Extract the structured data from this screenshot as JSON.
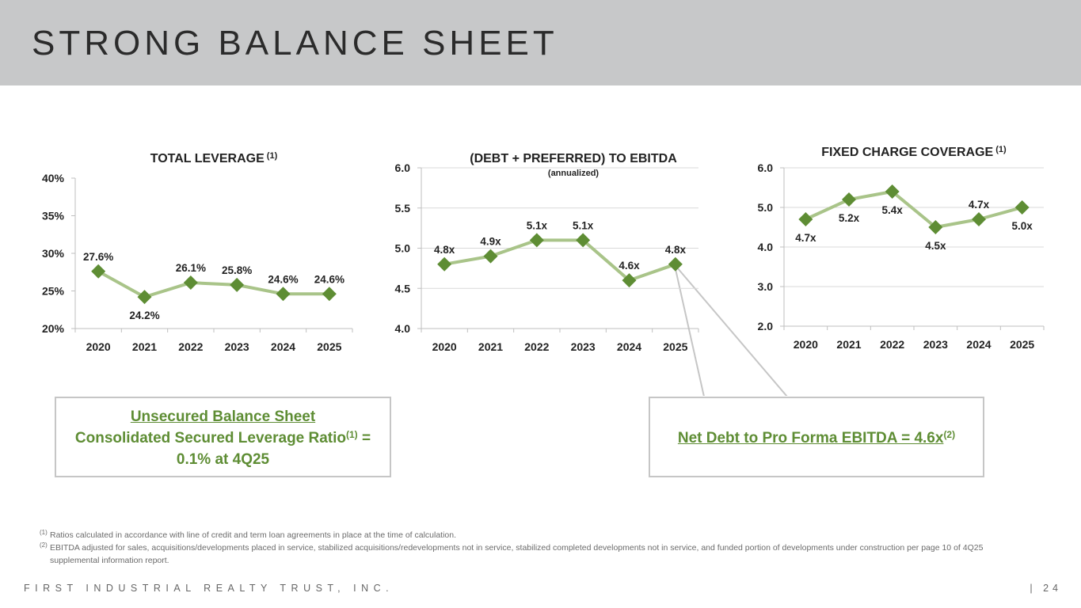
{
  "header": {
    "title": "STRONG BALANCE SHEET"
  },
  "chart_data": [
    {
      "type": "line",
      "title": "TOTAL LEVERAGE",
      "title_sup": "(1)",
      "subtitle": "",
      "categories": [
        "2020",
        "2021",
        "2022",
        "2023",
        "2024",
        "2025"
      ],
      "values": [
        27.6,
        24.2,
        26.1,
        25.8,
        24.6,
        24.6
      ],
      "labels": [
        "27.6%",
        "24.2%",
        "26.1%",
        "25.8%",
        "24.6%",
        "24.6%"
      ],
      "label_pos": [
        "above",
        "below",
        "above",
        "above",
        "above",
        "above"
      ],
      "ylim": [
        20,
        40
      ],
      "yticks": [
        20,
        25,
        30,
        35,
        40
      ],
      "ytick_labels": [
        "20%",
        "25%",
        "30%",
        "35%",
        "40%"
      ],
      "grid": false,
      "line_color": "#a9c489",
      "marker_color": "#5e8d34"
    },
    {
      "type": "line",
      "title": "(DEBT + PREFERRED) TO EBITDA",
      "title_sup": "",
      "subtitle": "(annualized)",
      "categories": [
        "2020",
        "2021",
        "2022",
        "2023",
        "2024",
        "2025"
      ],
      "values": [
        4.8,
        4.9,
        5.1,
        5.1,
        4.6,
        4.8
      ],
      "labels": [
        "4.8x",
        "4.9x",
        "5.1x",
        "5.1x",
        "4.6x",
        "4.8x"
      ],
      "label_pos": [
        "above",
        "above",
        "above",
        "above",
        "above",
        "above"
      ],
      "ylim": [
        4.0,
        6.0
      ],
      "yticks": [
        4.0,
        4.5,
        5.0,
        5.5,
        6.0
      ],
      "ytick_labels": [
        "4.0",
        "4.5",
        "5.0",
        "5.5",
        "6.0"
      ],
      "grid": true,
      "line_color": "#a9c489",
      "marker_color": "#5e8d34"
    },
    {
      "type": "line",
      "title": "FIXED CHARGE COVERAGE",
      "title_sup": "(1)",
      "subtitle": "",
      "categories": [
        "2020",
        "2021",
        "2022",
        "2023",
        "2024",
        "2025"
      ],
      "values": [
        4.7,
        5.2,
        5.4,
        4.5,
        4.7,
        5.0
      ],
      "labels": [
        "4.7x",
        "5.2x",
        "5.4x",
        "4.5x",
        "4.7x",
        "5.0x"
      ],
      "label_pos": [
        "below",
        "below",
        "below",
        "below",
        "above",
        "below"
      ],
      "ylim": [
        2.0,
        6.0
      ],
      "yticks": [
        2.0,
        3.0,
        4.0,
        5.0,
        6.0
      ],
      "ytick_labels": [
        "2.0",
        "3.0",
        "4.0",
        "5.0",
        "6.0"
      ],
      "grid": true,
      "line_color": "#a9c489",
      "marker_color": "#5e8d34"
    }
  ],
  "callouts": {
    "left_line1": "Unsecured Balance Sheet",
    "left_line2": "Consolidated Secured Leverage Ratio",
    "left_sup": "(1)",
    "left_line2_tail": " =",
    "left_line3": "0.1% at 4Q25",
    "right_text": "Net Debt to Pro Forma EBITDA = 4.6x",
    "right_sup": "(2)"
  },
  "footnotes": [
    {
      "mark": "(1)",
      "text": "Ratios calculated in accordance with line of credit and term loan agreements in place at the time of calculation."
    },
    {
      "mark": "(2)",
      "text": "EBITDA adjusted for sales, acquisitions/developments placed in service, stabilized acquisitions/redevelopments not in service, stabilized completed developments not in service, and funded portion of developments under construction per page 10 of 4Q25 supplemental information report."
    }
  ],
  "footer": {
    "company": "FIRST INDUSTRIAL REALTY TRUST, INC.",
    "page": "| 24"
  }
}
